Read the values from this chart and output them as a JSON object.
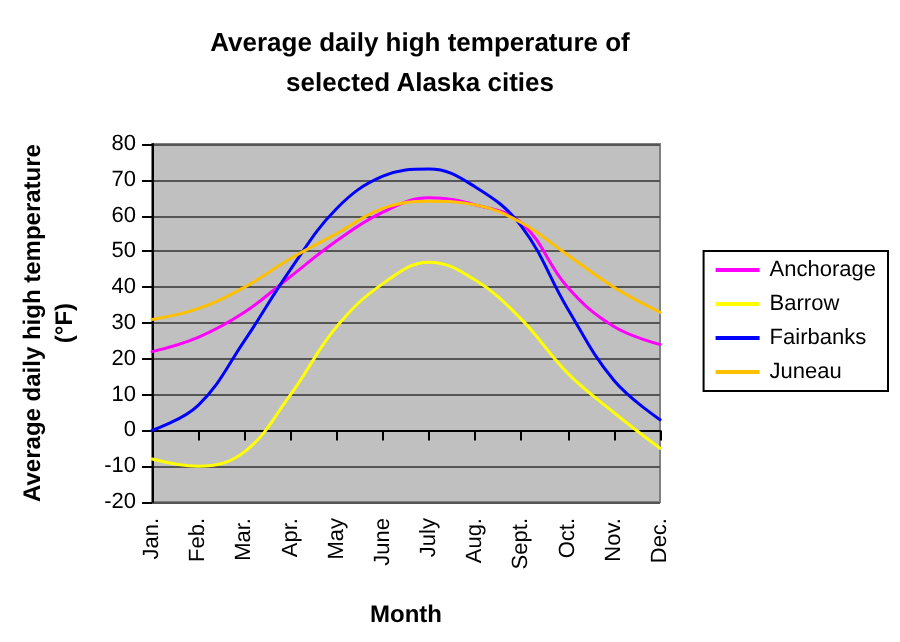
{
  "chart_data": {
    "type": "line",
    "title": "Average daily high temperature of\nselected Alaska cities",
    "xlabel": "Month",
    "ylabel": "Average daily high temperature\n(°F)",
    "categories": [
      "Jan.",
      "Feb.",
      "Mar.",
      "Apr.",
      "May",
      "June",
      "July",
      "Aug.",
      "Sept.",
      "Oct.",
      "Nov.",
      "Dec."
    ],
    "series": [
      {
        "name": "Anchorage",
        "color": "#ff00ff",
        "values": [
          22,
          26,
          33,
          43,
          53,
          61,
          65,
          63,
          58,
          40,
          29,
          24
        ]
      },
      {
        "name": "Barrow",
        "color": "#ffff00",
        "values": [
          -8,
          -10,
          -6,
          10,
          29,
          41,
          47,
          42,
          31,
          16,
          5,
          -5
        ]
      },
      {
        "name": "Fairbanks",
        "color": "#0000ff",
        "values": [
          0,
          7,
          25,
          45,
          62,
          71,
          73,
          68,
          57,
          34,
          14,
          3
        ]
      },
      {
        "name": "Juneau",
        "color": "#ffc000",
        "values": [
          31,
          34,
          40,
          48,
          55,
          62,
          64,
          63,
          58,
          49,
          40,
          33
        ]
      }
    ],
    "ylim": [
      -20,
      80
    ],
    "yticks": [
      -20,
      -10,
      0,
      10,
      20,
      30,
      40,
      50,
      60,
      70,
      80
    ],
    "grid": "y",
    "legend": "right",
    "marker": "none",
    "line_style": "solid"
  }
}
